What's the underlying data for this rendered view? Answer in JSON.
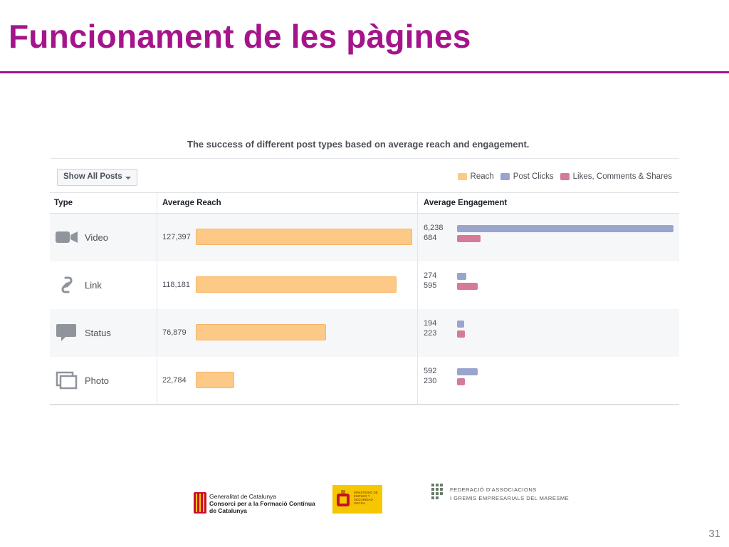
{
  "slide": {
    "title": "Funcionament de les pàgines",
    "page_number": "31",
    "accent_color": "#a5148b"
  },
  "filter": {
    "label": "Show All Posts"
  },
  "chart_data": {
    "type": "bar",
    "title": "The success of different post types based on average reach and engagement.",
    "columns": [
      "Type",
      "Average Reach",
      "Average Engagement"
    ],
    "categories": [
      "Video",
      "Link",
      "Status",
      "Photo"
    ],
    "icons": [
      "video-camera-icon",
      "link-icon",
      "speech-bubble-icon",
      "photo-icon"
    ],
    "legend": [
      "Reach",
      "Post Clicks",
      "Likes, Comments & Shares"
    ],
    "colors": {
      "reach": "#fcc986",
      "post_clicks": "#9aa5ce",
      "likes": "#d57a97"
    },
    "series": [
      {
        "name": "Reach",
        "values": [
          127397,
          118181,
          76879,
          22784
        ],
        "labels": [
          "127,397",
          "118,181",
          "76,879",
          "22,784"
        ]
      },
      {
        "name": "Post Clicks",
        "values": [
          6238,
          274,
          194,
          592
        ],
        "labels": [
          "6,238",
          "274",
          "194",
          "592"
        ]
      },
      {
        "name": "Likes, Comments & Shares",
        "values": [
          684,
          595,
          223,
          230
        ],
        "labels": [
          "684",
          "595",
          "223",
          "230"
        ]
      }
    ],
    "reach_max": 127397,
    "engagement_max": 6238,
    "legend_position": "top-right"
  },
  "logos": {
    "generalitat": {
      "line1": "Generalitat de Catalunya",
      "line2": "Consorci per a la Formació Contínua",
      "line3": "de Catalunya"
    },
    "ministerio": {
      "text": "MINISTERIO DE EMPLEO Y SEGURIDAD SOCIAL"
    },
    "federacio": {
      "line1": "FEDERACIÓ D'ASSOCIACIONS",
      "line2": "I GREMIS EMPRESARIALS DEL MARESME"
    }
  }
}
